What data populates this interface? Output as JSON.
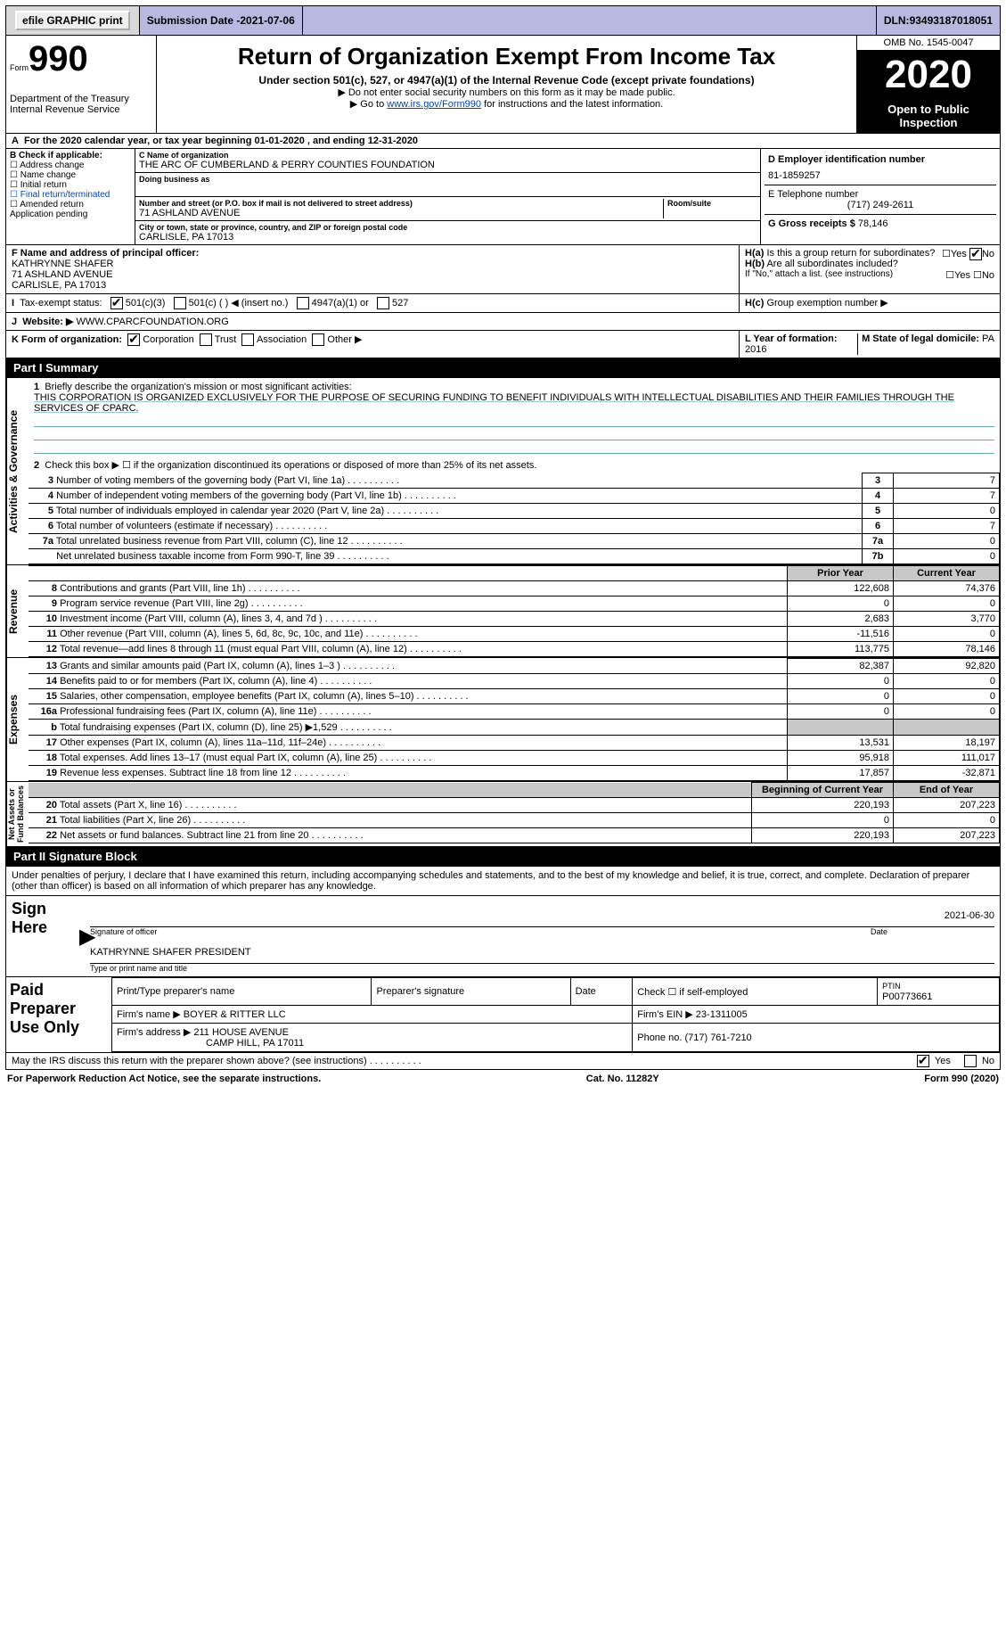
{
  "topbar": {
    "efile": "efile GRAPHIC print",
    "submission_label": "Submission Date - ",
    "submission_date": "2021-07-06",
    "dln_label": "DLN: ",
    "dln": "93493187018051"
  },
  "header": {
    "form_prefix": "Form",
    "form_number": "990",
    "dept": "Department of the Treasury\nInternal Revenue Service",
    "title": "Return of Organization Exempt From Income Tax",
    "subtitle": "Under section 501(c), 527, or 4947(a)(1) of the Internal Revenue Code (except private foundations)",
    "note1": "▶ Do not enter social security numbers on this form as it may be made public.",
    "note2_pre": "▶ Go to ",
    "note2_link": "www.irs.gov/Form990",
    "note2_post": " for instructions and the latest information.",
    "omb": "OMB No. 1545-0047",
    "year": "2020",
    "open": "Open to Public\nInspection"
  },
  "lineA": "For the 2020 calendar year, or tax year beginning 01-01-2020   , and ending 12-31-2020",
  "sectionB": {
    "label": "B Check if applicable:",
    "items": [
      "Address change",
      "Name change",
      "Initial return",
      "Final return/terminated",
      "Amended return",
      "Application pending"
    ]
  },
  "sectionC": {
    "label": "C Name of organization",
    "org": "THE ARC OF CUMBERLAND & PERRY COUNTIES FOUNDATION",
    "dba_label": "Doing business as",
    "addr_label": "Number and street (or P.O. box if mail is not delivered to street address)",
    "room_label": "Room/suite",
    "addr": "71 ASHLAND AVENUE",
    "city_label": "City or town, state or province, country, and ZIP or foreign postal code",
    "city": "CARLISLE, PA  17013"
  },
  "sectionD": {
    "label": "D Employer identification number",
    "value": "81-1859257"
  },
  "sectionE": {
    "label": "E Telephone number",
    "value": "(717) 249-2611"
  },
  "sectionG": {
    "label": "G Gross receipts $ ",
    "value": "78,146"
  },
  "sectionF": {
    "label": "F  Name and address of principal officer:",
    "name": "KATHRYNNE SHAFER",
    "addr1": "71 ASHLAND AVENUE",
    "addr2": "CARLISLE, PA  17013"
  },
  "sectionH": {
    "a": "Is this a group return for subordinates?",
    "b": "Are all subordinates included?",
    "b_note": "If \"No,\" attach a list. (see instructions)",
    "c": "Group exemption number ▶",
    "yes": "Yes",
    "no": "No"
  },
  "sectionI": {
    "label": "Tax-exempt status:",
    "opts": [
      "501(c)(3)",
      "501(c) (  ) ◀ (insert no.)",
      "4947(a)(1) or",
      "527"
    ]
  },
  "sectionJ": {
    "label": "Website: ▶",
    "value": "WWW.CPARCFOUNDATION.ORG"
  },
  "sectionK": {
    "label": "K Form of organization:",
    "opts": [
      "Corporation",
      "Trust",
      "Association",
      "Other ▶"
    ]
  },
  "sectionL": {
    "label": "L Year of formation: ",
    "value": "2016"
  },
  "sectionM": {
    "label": "M State of legal domicile: ",
    "value": "PA"
  },
  "part1": {
    "title": "Part I    Summary",
    "line1_label": "Briefly describe the organization's mission or most significant activities:",
    "mission": "THIS CORPORATION IS ORGANIZED EXCLUSIVELY FOR THE PURPOSE OF SECURING FUNDING TO BENEFIT INDIVIDUALS WITH INTELLECTUAL DISABILITIES AND THEIR FAMILIES THROUGH THE SERVICES OF CPARC.",
    "line2": "Check this box ▶ ☐  if the organization discontinued its operations or disposed of more than 25% of its net assets.",
    "rows_gov": [
      {
        "n": "3",
        "d": "Number of voting members of the governing body (Part VI, line 1a)",
        "box": "3",
        "v": "7"
      },
      {
        "n": "4",
        "d": "Number of independent voting members of the governing body (Part VI, line 1b)",
        "box": "4",
        "v": "7"
      },
      {
        "n": "5",
        "d": "Total number of individuals employed in calendar year 2020 (Part V, line 2a)",
        "box": "5",
        "v": "0"
      },
      {
        "n": "6",
        "d": "Total number of volunteers (estimate if necessary)",
        "box": "6",
        "v": "7"
      },
      {
        "n": "7a",
        "d": "Total unrelated business revenue from Part VIII, column (C), line 12",
        "box": "7a",
        "v": "0"
      },
      {
        "n": "",
        "d": "Net unrelated business taxable income from Form 990-T, line 39",
        "box": "7b",
        "v": "0"
      }
    ],
    "col_prior": "Prior Year",
    "col_curr": "Current Year",
    "revenue": [
      {
        "n": "8",
        "d": "Contributions and grants (Part VIII, line 1h)",
        "p": "122,608",
        "c": "74,376"
      },
      {
        "n": "9",
        "d": "Program service revenue (Part VIII, line 2g)",
        "p": "0",
        "c": "0"
      },
      {
        "n": "10",
        "d": "Investment income (Part VIII, column (A), lines 3, 4, and 7d )",
        "p": "2,683",
        "c": "3,770"
      },
      {
        "n": "11",
        "d": "Other revenue (Part VIII, column (A), lines 5, 6d, 8c, 9c, 10c, and 11e)",
        "p": "-11,516",
        "c": "0"
      },
      {
        "n": "12",
        "d": "Total revenue—add lines 8 through 11 (must equal Part VIII, column (A), line 12)",
        "p": "113,775",
        "c": "78,146"
      }
    ],
    "expenses": [
      {
        "n": "13",
        "d": "Grants and similar amounts paid (Part IX, column (A), lines 1–3 )",
        "p": "82,387",
        "c": "92,820"
      },
      {
        "n": "14",
        "d": "Benefits paid to or for members (Part IX, column (A), line 4)",
        "p": "0",
        "c": "0"
      },
      {
        "n": "15",
        "d": "Salaries, other compensation, employee benefits (Part IX, column (A), lines 5–10)",
        "p": "0",
        "c": "0"
      },
      {
        "n": "16a",
        "d": "Professional fundraising fees (Part IX, column (A), line 11e)",
        "p": "0",
        "c": "0"
      },
      {
        "n": "b",
        "d": "Total fundraising expenses (Part IX, column (D), line 25) ▶1,529",
        "p": "grey",
        "c": "grey"
      },
      {
        "n": "17",
        "d": "Other expenses (Part IX, column (A), lines 11a–11d, 11f–24e)",
        "p": "13,531",
        "c": "18,197"
      },
      {
        "n": "18",
        "d": "Total expenses. Add lines 13–17 (must equal Part IX, column (A), line 25)",
        "p": "95,918",
        "c": "111,017"
      },
      {
        "n": "19",
        "d": "Revenue less expenses. Subtract line 18 from line 12",
        "p": "17,857",
        "c": "-32,871"
      }
    ],
    "col_beg": "Beginning of Current Year",
    "col_end": "End of Year",
    "netassets": [
      {
        "n": "20",
        "d": "Total assets (Part X, line 16)",
        "p": "220,193",
        "c": "207,223"
      },
      {
        "n": "21",
        "d": "Total liabilities (Part X, line 26)",
        "p": "0",
        "c": "0"
      },
      {
        "n": "22",
        "d": "Net assets or fund balances. Subtract line 21 from line 20",
        "p": "220,193",
        "c": "207,223"
      }
    ],
    "vlabels": {
      "gov": "Activities & Governance",
      "rev": "Revenue",
      "exp": "Expenses",
      "na": "Net Assets or\nFund Balances"
    }
  },
  "part2": {
    "title": "Part II    Signature Block",
    "penalty": "Under penalties of perjury, I declare that I have examined this return, including accompanying schedules and statements, and to the best of my knowledge and belief, it is true, correct, and complete. Declaration of preparer (other than officer) is based on all information of which preparer has any knowledge.",
    "sign_here": "Sign Here",
    "sig_of_officer": "Signature of officer",
    "date_label": "Date",
    "date": "2021-06-30",
    "typed": "KATHRYNNE SHAFER  PRESIDENT",
    "typed_label": "Type or print name and title"
  },
  "preparer": {
    "label": "Paid Preparer Use Only",
    "col1": "Print/Type preparer's name",
    "col2": "Preparer's signature",
    "col3": "Date",
    "col4_pre": "Check ☐ if self-employed",
    "col5_label": "PTIN",
    "col5": "P00773661",
    "firm_label": "Firm's name   ▶",
    "firm": "BOYER & RITTER LLC",
    "ein_label": "Firm's EIN ▶",
    "ein": "23-1311005",
    "addr_label": "Firm's address ▶",
    "addr": "211 HOUSE AVENUE",
    "addr2": "CAMP HILL, PA  17011",
    "phone_label": "Phone no. ",
    "phone": "(717) 761-7210",
    "discuss": "May the IRS discuss this return with the preparer shown above? (see instructions)",
    "yes": "Yes",
    "no": "No"
  },
  "footer": {
    "left": "For Paperwork Reduction Act Notice, see the separate instructions.",
    "mid": "Cat. No. 11282Y",
    "right": "Form 990 (2020)"
  }
}
